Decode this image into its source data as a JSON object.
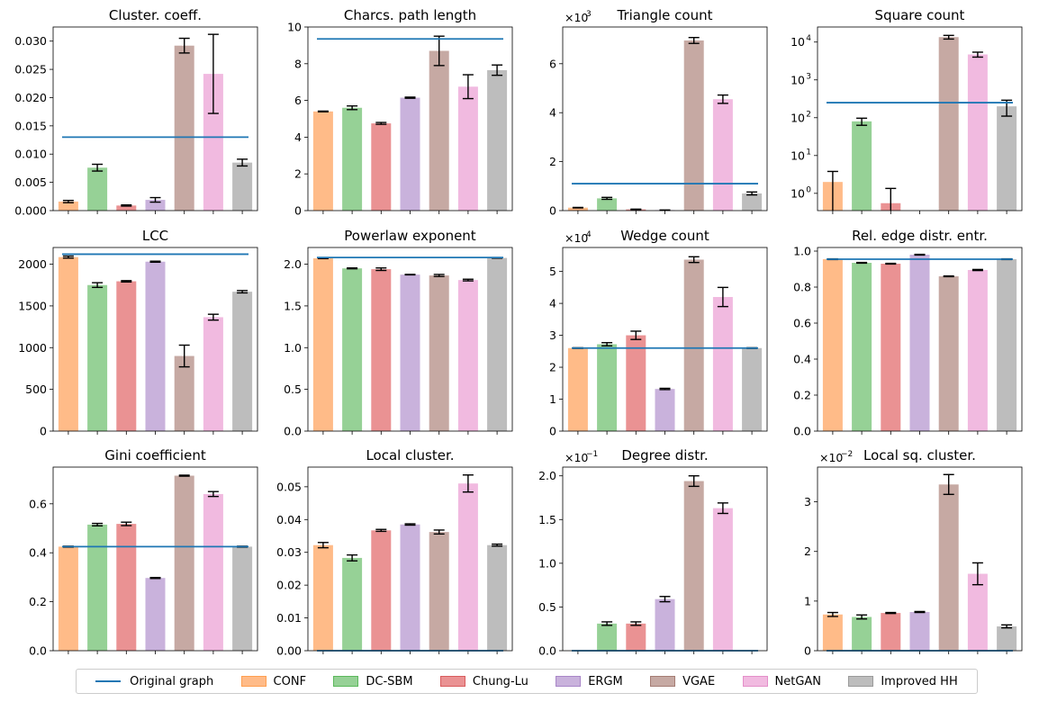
{
  "chart_data": {
    "type": "bar",
    "categories": [
      "CONF",
      "DC-SBM",
      "Chung-Lu",
      "ERGM",
      "VGAE",
      "NetGAN",
      "Improved HH"
    ],
    "colors": [
      "#ffbb88",
      "#96d196",
      "#ea9293",
      "#c9b2dc",
      "#c6a9a3",
      "#f1bae0",
      "#bdbdbd"
    ],
    "baseline_label": "Original graph",
    "baseline_color": "#1f77b4",
    "panels": [
      {
        "title": "Cluster. coeff.",
        "scale": "linear",
        "ylim": [
          0,
          0.0325
        ],
        "ticks": [
          0,
          0.005,
          0.01,
          0.015,
          0.02,
          0.025,
          0.03
        ],
        "tick_labels": [
          "0.000",
          "0.005",
          "0.010",
          "0.015",
          "0.020",
          "0.025",
          "0.030"
        ],
        "multiplier": "",
        "baseline": 0.013,
        "values": [
          0.0016,
          0.0076,
          0.0009,
          0.0019,
          0.0292,
          0.0242,
          0.0085
        ],
        "errors": [
          0.0002,
          0.0006,
          0.0001,
          0.0004,
          0.0013,
          0.007,
          0.0006
        ]
      },
      {
        "title": "Charcs. path length",
        "scale": "linear",
        "ylim": [
          0,
          10
        ],
        "ticks": [
          0,
          2,
          4,
          6,
          8,
          10
        ],
        "tick_labels": [
          "0",
          "2",
          "4",
          "6",
          "8",
          "10"
        ],
        "multiplier": "",
        "baseline": 9.35,
        "values": [
          5.4,
          5.6,
          4.75,
          6.15,
          8.7,
          6.75,
          7.65
        ],
        "errors": [
          0.02,
          0.1,
          0.05,
          0.03,
          0.8,
          0.65,
          0.28
        ]
      },
      {
        "title": "Triangle count",
        "scale": "linear",
        "ylim": [
          0,
          7.5
        ],
        "ticks": [
          0,
          2,
          4,
          6
        ],
        "tick_labels": [
          "0",
          "2",
          "4",
          "6"
        ],
        "multiplier": "×10",
        "multiplier_exp": "3",
        "baseline": 1.1,
        "values": [
          0.12,
          0.5,
          0.05,
          0.02,
          6.95,
          4.55,
          0.7
        ],
        "errors": [
          0.01,
          0.04,
          0.01,
          0.005,
          0.12,
          0.17,
          0.06
        ]
      },
      {
        "title": "Square count",
        "scale": "log",
        "ylim": [
          0.35,
          25000
        ],
        "ticks": [
          1,
          10,
          100,
          1000,
          10000
        ],
        "tick_labels": [
          "10",
          "10",
          "10",
          "10",
          "10"
        ],
        "tick_exps": [
          "0",
          "1",
          "2",
          "3",
          "4"
        ],
        "multiplier": "",
        "baseline": 250,
        "values": [
          2.0,
          80,
          0.55,
          0,
          13500,
          4700,
          200
        ],
        "errors": [
          1.8,
          17,
          0.8,
          0,
          1500,
          700,
          90
        ]
      },
      {
        "title": "LCC",
        "scale": "linear",
        "ylim": [
          0,
          2200
        ],
        "ticks": [
          0,
          500,
          1000,
          1500,
          2000
        ],
        "tick_labels": [
          "0",
          "500",
          "1000",
          "1500",
          "2000"
        ],
        "multiplier": "",
        "baseline": 2120,
        "values": [
          2085,
          1750,
          1795,
          2030,
          900,
          1365,
          1670
        ],
        "errors": [
          12,
          28,
          8,
          6,
          130,
          35,
          14
        ]
      },
      {
        "title": "Powerlaw exponent",
        "scale": "linear",
        "ylim": [
          0,
          2.2
        ],
        "ticks": [
          0,
          0.5,
          1.0,
          1.5,
          2.0
        ],
        "tick_labels": [
          "0.0",
          "0.5",
          "1.0",
          "1.5",
          "2.0"
        ],
        "multiplier": "",
        "baseline": 2.08,
        "values": [
          2.07,
          1.95,
          1.94,
          1.875,
          1.865,
          1.81,
          2.075
        ],
        "errors": [
          0.003,
          0.005,
          0.015,
          0.003,
          0.012,
          0.01,
          0.003
        ]
      },
      {
        "title": "Wedge count",
        "scale": "linear",
        "ylim": [
          0,
          5.75
        ],
        "ticks": [
          0,
          1,
          2,
          3,
          4,
          5
        ],
        "tick_labels": [
          "0",
          "1",
          "2",
          "3",
          "4",
          "5"
        ],
        "multiplier": "×10",
        "multiplier_exp": "4",
        "baseline": 2.6,
        "values": [
          2.6,
          2.72,
          3.0,
          1.32,
          5.37,
          4.2,
          2.6
        ],
        "errors": [
          0.01,
          0.05,
          0.13,
          0.02,
          0.09,
          0.3,
          0.01
        ]
      },
      {
        "title": "Rel. edge distr. entr.",
        "scale": "linear",
        "ylim": [
          0,
          1.02
        ],
        "ticks": [
          0,
          0.2,
          0.4,
          0.6,
          0.8,
          1.0
        ],
        "tick_labels": [
          "0.0",
          "0.2",
          "0.4",
          "0.6",
          "0.8",
          "1.0"
        ],
        "multiplier": "",
        "baseline": 0.955,
        "values": [
          0.955,
          0.935,
          0.93,
          0.98,
          0.86,
          0.895,
          0.955
        ],
        "errors": [
          0.002,
          0.002,
          0.002,
          0.002,
          0.002,
          0.003,
          0.002
        ]
      },
      {
        "title": "Gini coefficient",
        "scale": "linear",
        "ylim": [
          0,
          0.75
        ],
        "ticks": [
          0,
          0.2,
          0.4,
          0.6
        ],
        "tick_labels": [
          "0.0",
          "0.2",
          "0.4",
          "0.6"
        ],
        "multiplier": "",
        "baseline": 0.425,
        "values": [
          0.425,
          0.515,
          0.518,
          0.297,
          0.715,
          0.64,
          0.425
        ],
        "errors": [
          0.002,
          0.005,
          0.007,
          0.002,
          0.002,
          0.01,
          0.002
        ]
      },
      {
        "title": "Local cluster.",
        "scale": "linear",
        "ylim": [
          0,
          0.056
        ],
        "ticks": [
          0,
          0.01,
          0.02,
          0.03,
          0.04,
          0.05
        ],
        "tick_labels": [
          "0.00",
          "0.01",
          "0.02",
          "0.03",
          "0.04",
          "0.05"
        ],
        "multiplier": "",
        "baseline": 0.0,
        "values": [
          0.0322,
          0.0283,
          0.0367,
          0.0385,
          0.0362,
          0.051,
          0.0322
        ],
        "errors": [
          0.0008,
          0.0009,
          0.0003,
          0.0002,
          0.0006,
          0.0026,
          0.0003
        ]
      },
      {
        "title": "Degree distr.",
        "scale": "linear",
        "ylim": [
          0,
          2.1
        ],
        "ticks": [
          0,
          0.5,
          1.0,
          1.5,
          2.0
        ],
        "tick_labels": [
          "0.0",
          "0.5",
          "1.0",
          "1.5",
          "2.0"
        ],
        "multiplier": "×10",
        "multiplier_exp": "−1",
        "baseline": 0.0,
        "values": [
          0.0,
          0.31,
          0.31,
          0.59,
          1.94,
          1.63,
          0.0
        ],
        "errors": [
          0,
          0.02,
          0.02,
          0.03,
          0.06,
          0.06,
          0
        ]
      },
      {
        "title": "Local sq. cluster.",
        "scale": "linear",
        "ylim": [
          0,
          3.7
        ],
        "ticks": [
          0,
          1,
          2,
          3
        ],
        "tick_labels": [
          "0",
          "1",
          "2",
          "3"
        ],
        "multiplier": "×10",
        "multiplier_exp": "−2",
        "baseline": 0.0,
        "values": [
          0.73,
          0.68,
          0.76,
          0.78,
          3.35,
          1.55,
          0.49
        ],
        "errors": [
          0.04,
          0.04,
          0.01,
          0.01,
          0.2,
          0.22,
          0.03
        ]
      }
    ]
  }
}
